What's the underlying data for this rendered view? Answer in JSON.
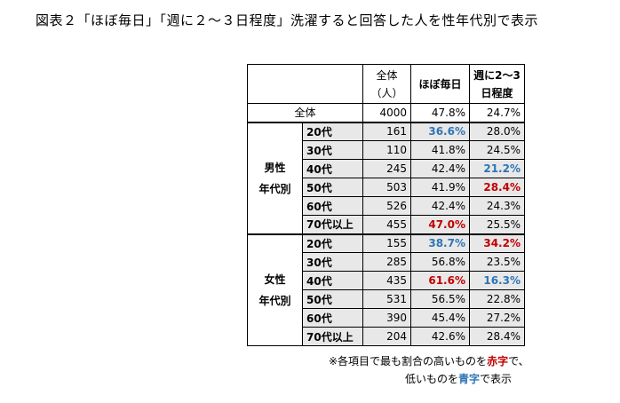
{
  "title": "図表２「ほぼ毎日」「週に２～３日程度」洗濯すると回答した人を性年代別で表示",
  "table": {
    "header": {
      "total_label_line1": "全体",
      "total_label_line2": "（人）",
      "col_daily": "ほぼ毎日",
      "col_weekly_line1": "週に2～3",
      "col_weekly_line2": "日程度"
    },
    "overall": {
      "label": "全体",
      "n": "4000",
      "daily": "47.8%",
      "weekly": "24.7%"
    },
    "male": {
      "label_line1": "男性",
      "label_line2": "年代別",
      "rows": [
        {
          "age": "20代",
          "n": "161",
          "daily": "36.6%",
          "weekly": "28.0%",
          "daily_style": "blue",
          "weekly_style": ""
        },
        {
          "age": "30代",
          "n": "110",
          "daily": "41.8%",
          "weekly": "24.5%",
          "daily_style": "",
          "weekly_style": ""
        },
        {
          "age": "40代",
          "n": "245",
          "daily": "42.4%",
          "weekly": "21.2%",
          "daily_style": "",
          "weekly_style": "blue"
        },
        {
          "age": "50代",
          "n": "503",
          "daily": "41.9%",
          "weekly": "28.4%",
          "daily_style": "",
          "weekly_style": "red"
        },
        {
          "age": "60代",
          "n": "526",
          "daily": "42.4%",
          "weekly": "24.3%",
          "daily_style": "",
          "weekly_style": ""
        },
        {
          "age": "70代以上",
          "n": "455",
          "daily": "47.0%",
          "weekly": "25.5%",
          "daily_style": "red",
          "weekly_style": ""
        }
      ]
    },
    "female": {
      "label_line1": "女性",
      "label_line2": "年代別",
      "rows": [
        {
          "age": "20代",
          "n": "155",
          "daily": "38.7%",
          "weekly": "34.2%",
          "daily_style": "blue",
          "weekly_style": "red"
        },
        {
          "age": "30代",
          "n": "285",
          "daily": "56.8%",
          "weekly": "23.5%",
          "daily_style": "",
          "weekly_style": ""
        },
        {
          "age": "40代",
          "n": "435",
          "daily": "61.6%",
          "weekly": "16.3%",
          "daily_style": "red",
          "weekly_style": "blue"
        },
        {
          "age": "50代",
          "n": "531",
          "daily": "56.5%",
          "weekly": "22.8%",
          "daily_style": "",
          "weekly_style": ""
        },
        {
          "age": "60代",
          "n": "390",
          "daily": "45.4%",
          "weekly": "27.2%",
          "daily_style": "",
          "weekly_style": ""
        },
        {
          "age": "70代以上",
          "n": "204",
          "daily": "42.6%",
          "weekly": "28.4%",
          "daily_style": "",
          "weekly_style": ""
        }
      ]
    }
  },
  "note": {
    "line1_prefix": "※各項目で最も割合の高いものを",
    "line1_red": "赤字",
    "line1_suffix": "で、",
    "line2_prefix": "低いものを",
    "line2_blue": "青字",
    "line2_suffix": "で表示"
  },
  "colors": {
    "red": "#c00000",
    "blue": "#2e75b6",
    "shade": "#e8e8e8"
  }
}
